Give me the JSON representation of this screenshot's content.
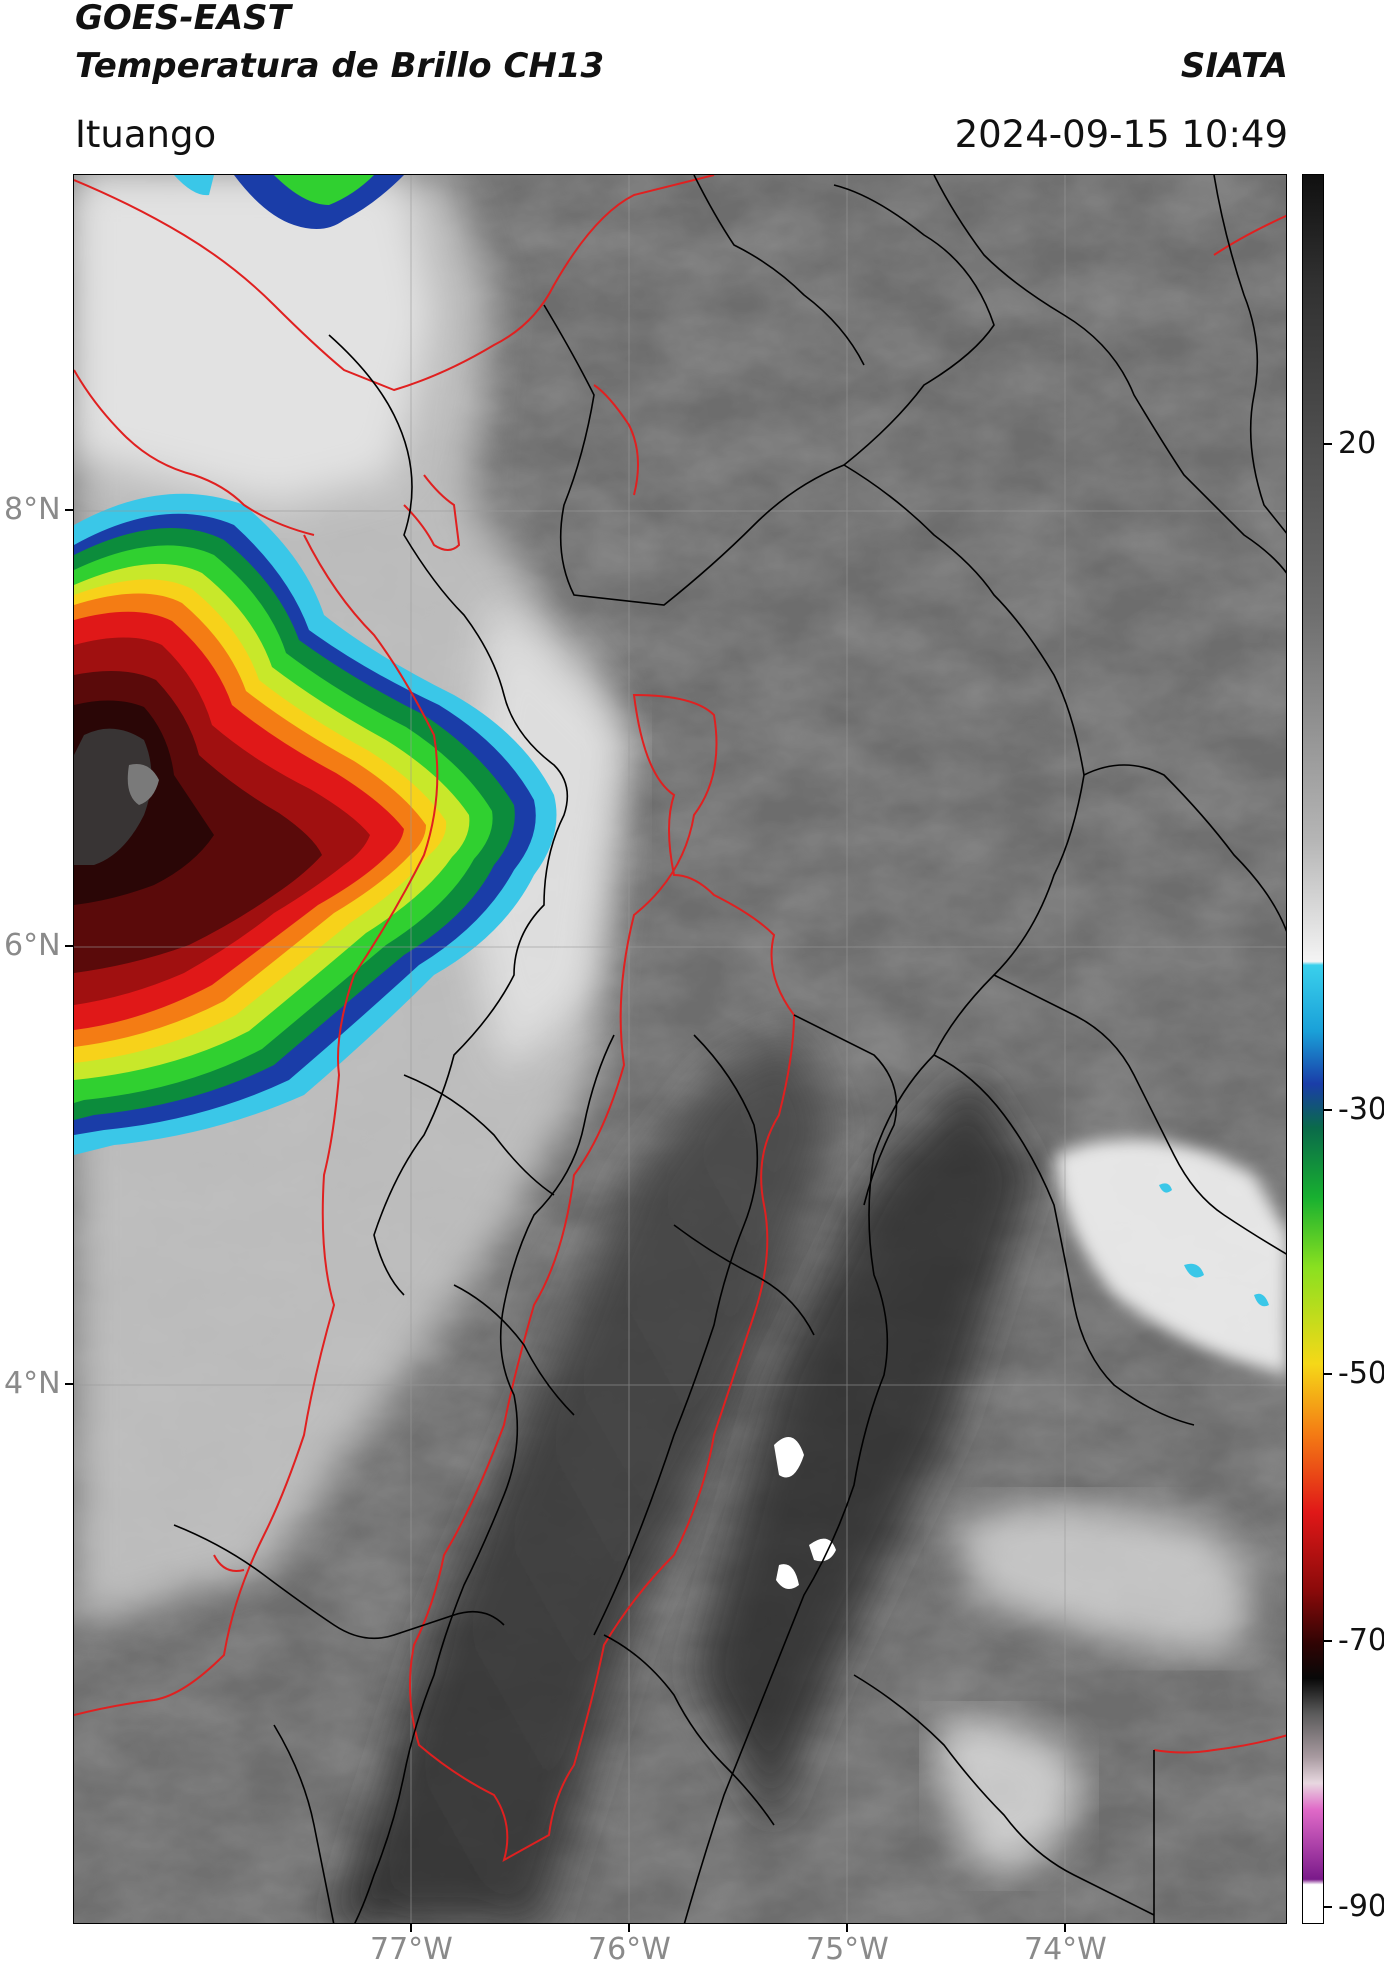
{
  "header": {
    "satellite": "GOES-EAST",
    "product": "Temperatura de Brillo CH13",
    "agency": "SIATA",
    "region": "Ituango",
    "datetime": "2024-09-15 10:49"
  },
  "map": {
    "lat_ticks": [
      {
        "label": "8°N",
        "lat": 8
      },
      {
        "label": "6°N",
        "lat": 6
      },
      {
        "label": "4°N",
        "lat": 4
      }
    ],
    "lon_ticks": [
      {
        "label": "77°W",
        "lon": -77
      },
      {
        "label": "76°W",
        "lon": -76
      },
      {
        "label": "75°W",
        "lon": -75
      },
      {
        "label": "74°W",
        "lon": -74
      }
    ],
    "colors": {
      "background_gray": "#6b6b6b",
      "border_national": "#e02020",
      "border_dept": "#000000",
      "gridline": "#9a9a9a"
    }
  },
  "colorbar": {
    "ticks": [
      {
        "label": "20",
        "value": 20
      },
      {
        "label": "-30",
        "value": -30
      },
      {
        "label": "-50",
        "value": -50
      },
      {
        "label": "-70",
        "value": -70
      },
      {
        "label": "-90",
        "value": -90
      }
    ],
    "range": [
      -92,
      36
    ]
  }
}
